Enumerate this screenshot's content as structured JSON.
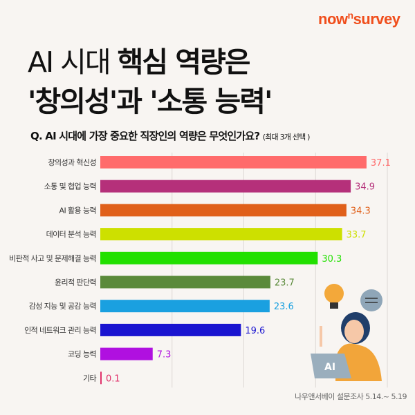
{
  "brand": {
    "logo_prefix": "now",
    "logo_sup": "n",
    "logo_suffix": "survey"
  },
  "headline": {
    "line1_a": "AI 시대 ",
    "line1_b": "핵심 역량은",
    "line2": "'창의성'과 '소통 능력'"
  },
  "question": {
    "text": "Q. AI 시대에 가장 중요한 직장인의 역량은 무엇인가요?",
    "note": "(최대 3개 선택 )"
  },
  "source": "나우앤서베이 설문조사 5.14.~ 5.19",
  "illustration": {
    "laptop_label": "AI"
  },
  "chart_data": {
    "type": "bar",
    "orientation": "horizontal",
    "title": "",
    "xlabel": "",
    "ylabel": "",
    "xlim": [
      0,
      40
    ],
    "grid": true,
    "categories": [
      "창의성과 혁신성",
      "소통 및 협업 능력",
      "AI 활용 능력",
      "데이터 분석 능력",
      "비판적 사고 및 문제해결 능력",
      "윤리적 판단력",
      "감성 지능 및 공감 능력",
      "인적 네트워크 관리 능력",
      "코딩 능력",
      "기타"
    ],
    "values": [
      37.1,
      34.9,
      34.3,
      33.7,
      30.3,
      23.7,
      23.6,
      19.6,
      7.3,
      0.1
    ],
    "labels": [
      "37.1",
      "34.9",
      "34.3",
      "33.7",
      "30.3",
      "23.7",
      "23.6",
      "19.6",
      "7.3",
      "0.1"
    ],
    "colors": [
      "#ff6b6b",
      "#b5307a",
      "#e0601a",
      "#cde000",
      "#22e000",
      "#5a8a3a",
      "#1aa0e0",
      "#1a14d0",
      "#b010e0",
      "#e0306a"
    ]
  }
}
